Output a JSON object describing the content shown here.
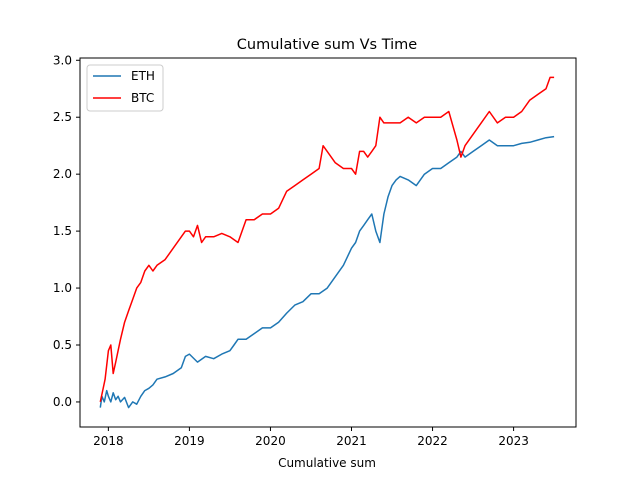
{
  "chart_data": {
    "type": "line",
    "title": "Cumulative sum Vs Time",
    "xlabel": "Cumulative sum",
    "ylabel": "",
    "xlim": [
      2017.65,
      2023.77
    ],
    "ylim": [
      -0.22,
      3.02
    ],
    "x_ticks": [
      {
        "value": 2018,
        "label": "2018"
      },
      {
        "value": 2019,
        "label": "2019"
      },
      {
        "value": 2020,
        "label": "2020"
      },
      {
        "value": 2021,
        "label": "2021"
      },
      {
        "value": 2022,
        "label": "2022"
      },
      {
        "value": 2023,
        "label": "2023"
      }
    ],
    "y_ticks": [
      {
        "value": 0.0,
        "label": "0.0"
      },
      {
        "value": 0.5,
        "label": "0.5"
      },
      {
        "value": 1.0,
        "label": "1.0"
      },
      {
        "value": 1.5,
        "label": "1.5"
      },
      {
        "value": 2.0,
        "label": "2.0"
      },
      {
        "value": 2.5,
        "label": "2.5"
      },
      {
        "value": 3.0,
        "label": "3.0"
      }
    ],
    "legend_position": "top-left",
    "grid": false,
    "series": [
      {
        "name": "ETH",
        "color": "#1f77b4",
        "x": [
          2017.9,
          2017.92,
          2017.95,
          2017.98,
          2018.0,
          2018.03,
          2018.06,
          2018.09,
          2018.12,
          2018.15,
          2018.2,
          2018.25,
          2018.3,
          2018.35,
          2018.4,
          2018.45,
          2018.5,
          2018.55,
          2018.6,
          2018.7,
          2018.8,
          2018.9,
          2018.95,
          2019.0,
          2019.1,
          2019.2,
          2019.3,
          2019.4,
          2019.5,
          2019.55,
          2019.6,
          2019.7,
          2019.8,
          2019.9,
          2020.0,
          2020.1,
          2020.2,
          2020.3,
          2020.4,
          2020.5,
          2020.6,
          2020.7,
          2020.8,
          2020.9,
          2021.0,
          2021.05,
          2021.1,
          2021.15,
          2021.2,
          2021.25,
          2021.3,
          2021.35,
          2021.4,
          2021.45,
          2021.5,
          2021.55,
          2021.6,
          2021.7,
          2021.8,
          2021.9,
          2022.0,
          2022.1,
          2022.2,
          2022.3,
          2022.35,
          2022.4,
          2022.5,
          2022.6,
          2022.7,
          2022.8,
          2022.9,
          2023.0,
          2023.1,
          2023.2,
          2023.3,
          2023.4,
          2023.5
        ],
        "values": [
          -0.05,
          0.05,
          0.0,
          0.1,
          0.05,
          0.0,
          0.08,
          0.02,
          0.05,
          0.0,
          0.04,
          -0.05,
          0.0,
          -0.02,
          0.05,
          0.1,
          0.12,
          0.15,
          0.2,
          0.22,
          0.25,
          0.3,
          0.4,
          0.42,
          0.35,
          0.4,
          0.38,
          0.42,
          0.45,
          0.5,
          0.55,
          0.55,
          0.6,
          0.65,
          0.65,
          0.7,
          0.78,
          0.85,
          0.88,
          0.95,
          0.95,
          1.0,
          1.1,
          1.2,
          1.35,
          1.4,
          1.5,
          1.55,
          1.6,
          1.65,
          1.5,
          1.4,
          1.65,
          1.8,
          1.9,
          1.95,
          1.98,
          1.95,
          1.9,
          2.0,
          2.05,
          2.05,
          2.1,
          2.15,
          2.2,
          2.15,
          2.2,
          2.25,
          2.3,
          2.25,
          2.25,
          2.25,
          2.27,
          2.28,
          2.3,
          2.32,
          2.33
        ]
      },
      {
        "name": "BTC",
        "color": "#ff0000",
        "x": [
          2017.9,
          2017.93,
          2017.96,
          2018.0,
          2018.03,
          2018.06,
          2018.09,
          2018.12,
          2018.15,
          2018.2,
          2018.25,
          2018.3,
          2018.35,
          2018.4,
          2018.45,
          2018.5,
          2018.55,
          2018.6,
          2018.7,
          2018.8,
          2018.9,
          2018.95,
          2019.0,
          2019.05,
          2019.1,
          2019.15,
          2019.2,
          2019.3,
          2019.4,
          2019.5,
          2019.6,
          2019.7,
          2019.8,
          2019.9,
          2020.0,
          2020.1,
          2020.2,
          2020.3,
          2020.4,
          2020.5,
          2020.6,
          2020.65,
          2020.7,
          2020.8,
          2020.9,
          2021.0,
          2021.05,
          2021.1,
          2021.15,
          2021.2,
          2021.25,
          2021.3,
          2021.35,
          2021.4,
          2021.5,
          2021.6,
          2021.7,
          2021.8,
          2021.9,
          2022.0,
          2022.1,
          2022.2,
          2022.3,
          2022.35,
          2022.4,
          2022.5,
          2022.6,
          2022.7,
          2022.8,
          2022.9,
          2023.0,
          2023.1,
          2023.2,
          2023.3,
          2023.4,
          2023.45,
          2023.5
        ],
        "values": [
          0.0,
          0.1,
          0.2,
          0.45,
          0.5,
          0.25,
          0.35,
          0.45,
          0.55,
          0.7,
          0.8,
          0.9,
          1.0,
          1.05,
          1.15,
          1.2,
          1.15,
          1.2,
          1.25,
          1.35,
          1.45,
          1.5,
          1.5,
          1.45,
          1.55,
          1.4,
          1.45,
          1.45,
          1.48,
          1.45,
          1.4,
          1.6,
          1.6,
          1.65,
          1.65,
          1.7,
          1.85,
          1.9,
          1.95,
          2.0,
          2.05,
          2.25,
          2.2,
          2.1,
          2.05,
          2.05,
          2.0,
          2.2,
          2.2,
          2.15,
          2.2,
          2.25,
          2.5,
          2.45,
          2.45,
          2.45,
          2.5,
          2.45,
          2.5,
          2.5,
          2.5,
          2.55,
          2.3,
          2.15,
          2.25,
          2.35,
          2.45,
          2.55,
          2.45,
          2.5,
          2.5,
          2.55,
          2.65,
          2.7,
          2.75,
          2.85,
          2.85
        ]
      }
    ]
  }
}
